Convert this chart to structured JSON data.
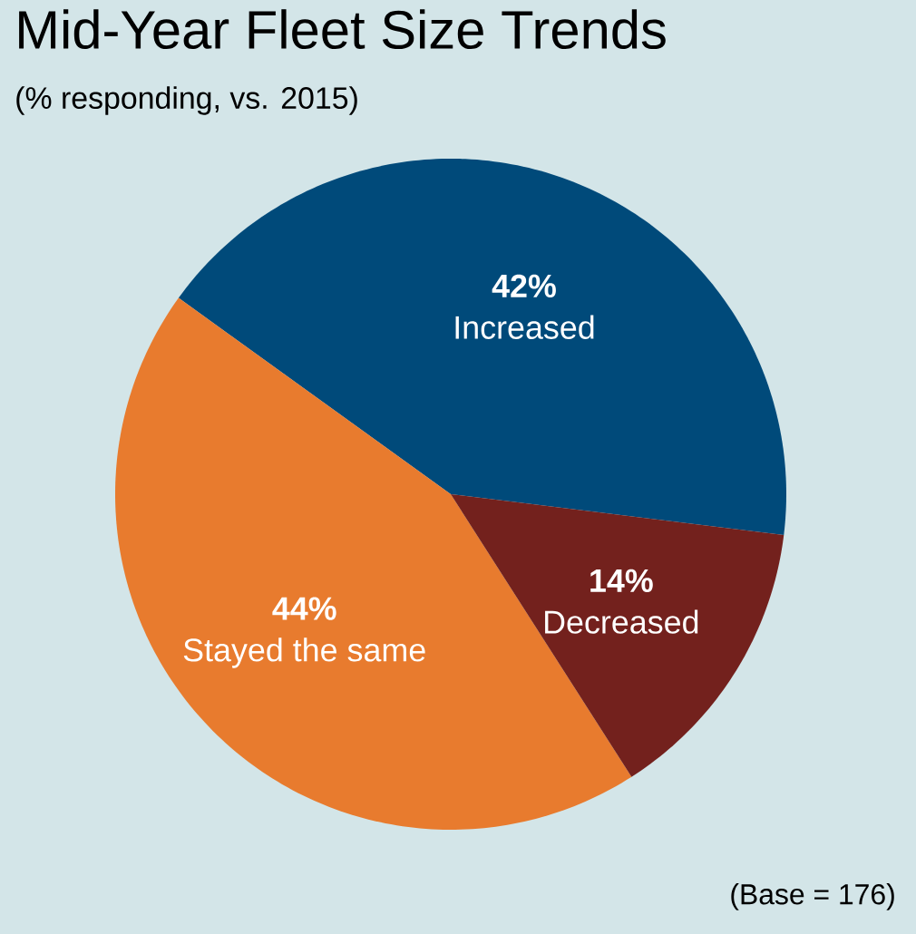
{
  "chart_data": {
    "type": "pie",
    "title": "Mid-Year Fleet Size Trends",
    "subtitle": "(% responding, vs. 2015)",
    "categories": [
      "Increased",
      "Stayed the same",
      "Decreased"
    ],
    "values": [
      42,
      44,
      14
    ],
    "colors": [
      "#004a7a",
      "#e87b2e",
      "#73211d"
    ],
    "value_labels": [
      "42%",
      "44%",
      "14%"
    ],
    "annotations": [
      "(Base = 176)"
    ]
  }
}
